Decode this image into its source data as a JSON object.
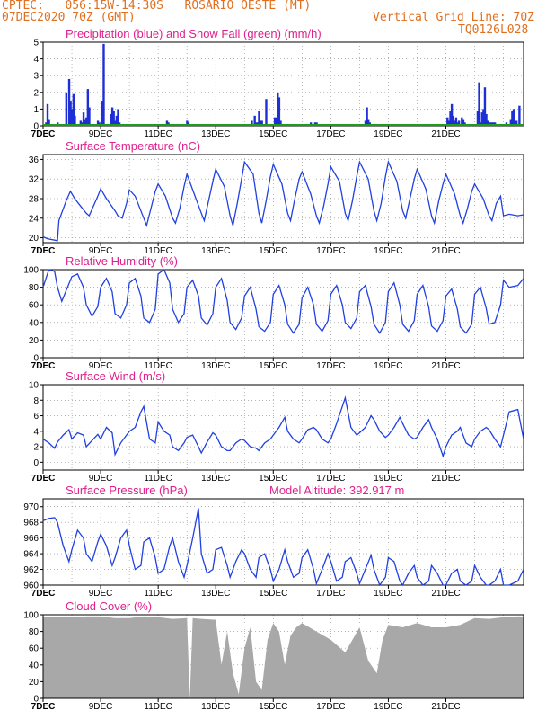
{
  "header": {
    "line1": "CPTEC:   056:15W-14:30S   ROSARIO OESTE (MT)",
    "line2_left": "07DEC2020 70Z (GMT)",
    "line2_right": "Vertical Grid Line: 70Z",
    "code": "TQ0126L028"
  },
  "chart_data": [
    {
      "type": "bar",
      "title": "Precipitation (blue) and Snow Fall (green) (mm/h)",
      "x_ticks": [
        "7DEC",
        "9DEC",
        "11DEC",
        "13DEC",
        "15DEC",
        "17DEC",
        "19DEC",
        "21DEC"
      ],
      "ylim": [
        0,
        5
      ],
      "y_ticks": [
        0,
        1,
        2,
        3,
        4,
        5
      ],
      "colors": {
        "precip": "#1f2fd6",
        "snow": "#18a018"
      },
      "series": [
        {
          "name": "Precipitation",
          "x": [
            0.1,
            0.15,
            0.2,
            0.5,
            0.8,
            0.9,
            0.95,
            1.0,
            1.05,
            1.1,
            1.3,
            1.35,
            1.4,
            1.45,
            1.5,
            1.55,
            1.6,
            1.9,
            1.95,
            2.0,
            2.05,
            2.1,
            2.35,
            2.4,
            2.45,
            2.5,
            2.55,
            2.6,
            2.65,
            4.3,
            4.35,
            5.0,
            5.05,
            5.1,
            7.25,
            7.3,
            7.35,
            7.4,
            7.45,
            7.5,
            7.55,
            7.6,
            7.65,
            7.7,
            7.75,
            7.8,
            7.85,
            8.05,
            8.1,
            8.15,
            8.2,
            8.25,
            8.3,
            8.35,
            9.3,
            9.35,
            9.4,
            9.45,
            9.5,
            11.15,
            11.2,
            11.25,
            11.3,
            11.35,
            14.05,
            14.1,
            14.15,
            14.2,
            14.25,
            14.3,
            14.35,
            14.4,
            14.45,
            14.5,
            14.55,
            14.6,
            14.65,
            14.7,
            15.1,
            15.15,
            15.2,
            15.25,
            15.3,
            15.35,
            15.4,
            15.45,
            15.5,
            15.55,
            15.6,
            15.65,
            15.7,
            16.1,
            16.15,
            16.2,
            16.25,
            16.3,
            16.35,
            16.4,
            16.45,
            16.5,
            16.55,
            16.6
          ],
          "values": [
            0.2,
            1.3,
            0.4,
            0.2,
            2.0,
            2.8,
            1.5,
            1.0,
            1.9,
            0.6,
            0.3,
            0.2,
            0.8,
            0.4,
            0.5,
            2.2,
            1.1,
            0.3,
            0.2,
            0.1,
            1.5,
            4.9,
            0.7,
            1.1,
            0.9,
            0.3,
            0.6,
            1.0,
            0.2,
            0.3,
            0.2,
            0.3,
            0.2,
            0.1,
            0.3,
            0.1,
            0.6,
            0.2,
            0.2,
            0.9,
            0.3,
            0.3,
            0.1,
            0.1,
            1.6,
            0.1,
            0.1,
            0.5,
            0.5,
            2.0,
            1.7,
            0.3,
            0.1,
            0.1,
            0.2,
            0.1,
            0.1,
            0.2,
            0.2,
            0.1,
            0.3,
            1.1,
            0.4,
            0.2,
            0.5,
            0.3,
            0.9,
            1.3,
            0.6,
            0.3,
            0.5,
            0.2,
            0.3,
            0.1,
            0.5,
            0.4,
            0.2,
            0.1,
            0.9,
            2.6,
            0.2,
            0.8,
            1.0,
            2.3,
            0.7,
            0.3,
            0.2,
            0.2,
            0.2,
            0.2,
            0.2,
            0.2,
            0.1,
            0.1,
            0.4,
            0.9,
            1.0,
            0.1,
            0.3,
            0.1,
            1.2,
            0.1
          ]
        },
        {
          "name": "Snow Fall",
          "x": [
            0,
            16.7
          ],
          "values": [
            0,
            0
          ]
        }
      ]
    },
    {
      "type": "line",
      "title": "Surface Temperature (nC)",
      "x_ticks": [
        "7DEC",
        "9DEC",
        "11DEC",
        "13DEC",
        "15DEC",
        "17DEC",
        "19DEC",
        "21DEC"
      ],
      "ylim": [
        19,
        37
      ],
      "y_ticks": [
        20,
        24,
        28,
        32,
        36
      ],
      "color": "#2040e0",
      "x": [
        0.0,
        0.15,
        0.5,
        0.55,
        0.8,
        0.95,
        1.1,
        1.3,
        1.5,
        1.6,
        1.75,
        1.9,
        2.0,
        2.2,
        2.5,
        2.6,
        2.75,
        2.9,
        3.0,
        3.2,
        3.5,
        3.6,
        3.75,
        3.9,
        4.0,
        4.25,
        4.5,
        4.6,
        4.75,
        4.9,
        5.0,
        5.25,
        5.5,
        5.6,
        5.75,
        5.9,
        6.0,
        6.3,
        6.5,
        6.6,
        6.75,
        6.9,
        7.0,
        7.3,
        7.5,
        7.6,
        7.75,
        7.9,
        8.0,
        8.3,
        8.5,
        8.6,
        8.75,
        8.9,
        9.0,
        9.3,
        9.5,
        9.6,
        9.75,
        9.9,
        10.0,
        10.3,
        10.5,
        10.6,
        10.75,
        10.9,
        11.0,
        11.3,
        11.5,
        11.6,
        11.75,
        11.9,
        12.0,
        12.3,
        12.5,
        12.6,
        12.75,
        12.9,
        13.0,
        13.3,
        13.5,
        13.6,
        13.75,
        13.9,
        14.0,
        14.3,
        14.5,
        14.6,
        14.75,
        14.9,
        15.0,
        15.3,
        15.5,
        15.6,
        15.75,
        15.9,
        16.0,
        16.2,
        16.5,
        16.7
      ],
      "y": [
        20.2,
        19.8,
        19.4,
        23.5,
        27.5,
        29.5,
        28.0,
        26.5,
        25.0,
        24.5,
        26.5,
        28.5,
        30.0,
        28.0,
        25.5,
        24.5,
        24.0,
        27.0,
        29.8,
        28.5,
        24.0,
        22.5,
        26.0,
        29.5,
        31.0,
        28.5,
        24.0,
        23.0,
        26.0,
        30.5,
        33.0,
        29.0,
        25.0,
        23.5,
        27.5,
        31.5,
        34.0,
        30.5,
        24.5,
        22.5,
        27.0,
        32.0,
        35.5,
        33.0,
        25.0,
        23.0,
        27.5,
        32.5,
        35.0,
        31.0,
        25.0,
        23.5,
        28.0,
        32.0,
        33.5,
        29.0,
        24.5,
        23.0,
        26.5,
        31.0,
        34.5,
        31.5,
        25.0,
        23.5,
        27.5,
        32.5,
        35.5,
        32.0,
        25.5,
        23.5,
        27.0,
        32.5,
        35.5,
        31.5,
        25.5,
        24.0,
        28.0,
        32.0,
        34.0,
        30.0,
        24.5,
        23.0,
        27.5,
        31.0,
        33.0,
        29.0,
        24.5,
        23.0,
        26.0,
        29.5,
        31.0,
        28.0,
        24.5,
        23.5,
        27.0,
        28.5,
        24.5,
        24.8,
        24.5,
        24.7
      ]
    },
    {
      "type": "line",
      "title": "Relative Humidity (%)",
      "x_ticks": [
        "7DEC",
        "9DEC",
        "11DEC",
        "13DEC",
        "15DEC",
        "17DEC",
        "19DEC",
        "21DEC"
      ],
      "ylim": [
        0,
        100
      ],
      "y_ticks": [
        0,
        20,
        40,
        60,
        80,
        100
      ],
      "color": "#2040e0",
      "x": [
        0.0,
        0.2,
        0.4,
        0.5,
        0.65,
        0.8,
        1.0,
        1.2,
        1.4,
        1.5,
        1.7,
        1.9,
        2.0,
        2.2,
        2.4,
        2.5,
        2.7,
        2.9,
        3.0,
        3.2,
        3.4,
        3.5,
        3.7,
        3.9,
        4.0,
        4.2,
        4.4,
        4.5,
        4.7,
        4.9,
        5.0,
        5.2,
        5.4,
        5.5,
        5.7,
        5.9,
        6.0,
        6.2,
        6.4,
        6.5,
        6.7,
        6.9,
        7.0,
        7.2,
        7.4,
        7.5,
        7.7,
        7.9,
        8.0,
        8.2,
        8.4,
        8.5,
        8.7,
        8.9,
        9.0,
        9.2,
        9.4,
        9.5,
        9.7,
        9.9,
        10.0,
        10.2,
        10.4,
        10.5,
        10.7,
        10.9,
        11.0,
        11.2,
        11.4,
        11.5,
        11.7,
        11.9,
        12.0,
        12.2,
        12.4,
        12.5,
        12.7,
        12.9,
        13.0,
        13.2,
        13.4,
        13.5,
        13.7,
        13.9,
        14.0,
        14.2,
        14.4,
        14.5,
        14.7,
        14.9,
        15.0,
        15.2,
        15.4,
        15.5,
        15.7,
        15.9,
        16.0,
        16.2,
        16.5,
        16.7
      ],
      "y": [
        80,
        100,
        98,
        80,
        64,
        76,
        92,
        95,
        80,
        60,
        47,
        58,
        80,
        90,
        75,
        50,
        45,
        60,
        85,
        90,
        70,
        45,
        40,
        55,
        95,
        100,
        85,
        55,
        40,
        50,
        80,
        88,
        70,
        45,
        37,
        50,
        80,
        90,
        65,
        40,
        32,
        45,
        70,
        80,
        55,
        35,
        30,
        40,
        72,
        82,
        60,
        38,
        28,
        38,
        68,
        80,
        60,
        38,
        30,
        42,
        72,
        82,
        60,
        40,
        33,
        45,
        75,
        82,
        58,
        38,
        28,
        40,
        75,
        85,
        60,
        38,
        30,
        42,
        72,
        82,
        58,
        36,
        30,
        42,
        70,
        78,
        55,
        35,
        28,
        38,
        72,
        80,
        56,
        38,
        40,
        60,
        88,
        80,
        82,
        90
      ]
    },
    {
      "type": "line",
      "title": "Surface Wind (m/s)",
      "x_ticks": [
        "7DEC",
        "9DEC",
        "11DEC",
        "13DEC",
        "15DEC",
        "17DEC",
        "19DEC",
        "21DEC"
      ],
      "ylim": [
        -1,
        10
      ],
      "y_ticks": [
        0,
        2,
        4,
        6,
        8,
        10
      ],
      "color": "#2040e0",
      "x": [
        0.0,
        0.2,
        0.4,
        0.5,
        0.7,
        0.9,
        1.0,
        1.2,
        1.4,
        1.5,
        1.7,
        1.9,
        2.0,
        2.2,
        2.4,
        2.5,
        2.7,
        2.9,
        3.0,
        3.2,
        3.4,
        3.5,
        3.7,
        3.9,
        4.0,
        4.2,
        4.4,
        4.5,
        4.7,
        4.9,
        5.0,
        5.2,
        5.4,
        5.5,
        5.7,
        5.9,
        6.0,
        6.2,
        6.4,
        6.5,
        6.7,
        6.9,
        7.0,
        7.2,
        7.4,
        7.5,
        7.7,
        7.9,
        8.0,
        8.2,
        8.4,
        8.5,
        8.7,
        8.9,
        9.0,
        9.2,
        9.4,
        9.5,
        9.7,
        9.9,
        10.0,
        10.2,
        10.4,
        10.5,
        10.7,
        10.9,
        11.0,
        11.2,
        11.4,
        11.5,
        11.7,
        11.9,
        12.0,
        12.2,
        12.4,
        12.5,
        12.7,
        12.9,
        13.0,
        13.2,
        13.4,
        13.5,
        13.7,
        13.9,
        14.0,
        14.2,
        14.4,
        14.5,
        14.7,
        14.9,
        15.0,
        15.2,
        15.4,
        15.5,
        15.7,
        15.9,
        16.0,
        16.2,
        16.5,
        16.7
      ],
      "y": [
        3.0,
        2.5,
        1.8,
        2.6,
        3.5,
        4.2,
        3.0,
        3.8,
        3.5,
        2.0,
        2.8,
        3.6,
        3.0,
        4.5,
        3.8,
        1.0,
        2.5,
        3.5,
        4.0,
        4.5,
        6.5,
        7.2,
        3.0,
        2.5,
        5.2,
        4.0,
        3.5,
        2.0,
        1.5,
        2.5,
        3.2,
        3.5,
        2.0,
        1.2,
        2.6,
        3.8,
        3.5,
        2.0,
        1.5,
        1.5,
        2.5,
        3.0,
        2.8,
        2.0,
        1.8,
        1.5,
        2.5,
        3.0,
        3.5,
        4.5,
        5.8,
        4.0,
        3.0,
        2.5,
        3.0,
        4.2,
        4.5,
        4.2,
        3.0,
        2.5,
        3.0,
        5.0,
        7.2,
        8.3,
        4.5,
        3.5,
        3.8,
        4.5,
        6.0,
        5.5,
        4.0,
        3.2,
        3.5,
        4.5,
        5.8,
        5.0,
        3.5,
        3.0,
        3.2,
        4.5,
        5.5,
        4.5,
        3.0,
        0.8,
        2.0,
        3.5,
        4.0,
        4.5,
        2.5,
        2.0,
        3.0,
        4.0,
        4.5,
        4.2,
        3.0,
        2.0,
        3.5,
        6.5,
        6.8,
        3.0
      ]
    },
    {
      "type": "line",
      "title": "Surface Pressure (hPa)",
      "annotation": "Model Altitude: 392.917  m",
      "x_ticks": [
        "7DEC",
        "9DEC",
        "11DEC",
        "13DEC",
        "15DEC",
        "17DEC",
        "19DEC",
        "21DEC"
      ],
      "ylim": [
        960,
        971
      ],
      "y_ticks": [
        960,
        962,
        964,
        966,
        968,
        970
      ],
      "color": "#2040e0",
      "x": [
        0.0,
        0.2,
        0.4,
        0.5,
        0.7,
        0.9,
        1.0,
        1.2,
        1.4,
        1.5,
        1.7,
        1.9,
        2.0,
        2.2,
        2.4,
        2.5,
        2.7,
        2.9,
        3.0,
        3.2,
        3.4,
        3.5,
        3.7,
        3.9,
        4.0,
        4.2,
        4.4,
        4.5,
        4.7,
        4.9,
        5.0,
        5.2,
        5.4,
        5.5,
        5.7,
        5.9,
        6.0,
        6.2,
        6.4,
        6.5,
        6.7,
        6.9,
        7.0,
        7.2,
        7.4,
        7.5,
        7.7,
        7.9,
        8.0,
        8.2,
        8.4,
        8.5,
        8.7,
        8.9,
        9.0,
        9.2,
        9.4,
        9.5,
        9.7,
        9.9,
        10.0,
        10.2,
        10.4,
        10.5,
        10.7,
        10.9,
        11.0,
        11.2,
        11.4,
        11.5,
        11.7,
        11.9,
        12.0,
        12.2,
        12.4,
        12.5,
        12.7,
        12.9,
        13.0,
        13.2,
        13.4,
        13.5,
        13.7,
        13.9,
        14.0,
        14.2,
        14.4,
        14.5,
        14.7,
        14.9,
        15.0,
        15.2,
        15.4,
        15.5,
        15.7,
        15.9,
        16.0,
        16.2,
        16.5,
        16.7
      ],
      "y": [
        968.2,
        968.5,
        968.6,
        968.0,
        965.0,
        963.0,
        964.5,
        967.0,
        966.0,
        964.0,
        963.0,
        965.5,
        966.5,
        965.0,
        962.5,
        963.5,
        966.0,
        967.0,
        965.0,
        962.0,
        962.5,
        965.5,
        966.0,
        963.5,
        961.5,
        962.0,
        965.0,
        966.0,
        963.0,
        961.0,
        962.5,
        966.0,
        969.8,
        964.0,
        961.5,
        962.0,
        964.5,
        964.8,
        962.5,
        961.0,
        963.0,
        964.5,
        964.0,
        962.0,
        961.0,
        963.5,
        964.0,
        962.0,
        960.5,
        962.0,
        964.5,
        963.0,
        961.0,
        961.5,
        963.5,
        964.5,
        962.0,
        960.2,
        962.0,
        964.0,
        963.0,
        960.5,
        961.0,
        963.0,
        963.5,
        961.5,
        960.2,
        962.0,
        963.8,
        962.0,
        960.0,
        961.0,
        963.5,
        963.0,
        960.5,
        960.0,
        961.5,
        962.5,
        961.0,
        959.5,
        960.5,
        962.5,
        961.5,
        959.5,
        959.0,
        961.5,
        962.0,
        960.5,
        959.0,
        960.5,
        962.5,
        961.0,
        959.5,
        959.0,
        960.5,
        962.0,
        960.0,
        959.0,
        960.5,
        962.0
      ]
    },
    {
      "type": "area",
      "title": "Cloud Cover (%)",
      "x_ticks": [
        "7DEC",
        "9DEC",
        "11DEC",
        "13DEC",
        "15DEC",
        "17DEC",
        "19DEC",
        "21DEC"
      ],
      "ylim": [
        0,
        100
      ],
      "y_ticks": [
        0,
        20,
        40,
        60,
        80,
        100
      ],
      "color": "#a8a8a8",
      "x": [
        0.0,
        0.5,
        1.0,
        1.5,
        2.0,
        2.5,
        3.0,
        3.5,
        4.0,
        4.5,
        5.0,
        5.1,
        5.2,
        5.5,
        6.0,
        6.2,
        6.4,
        6.6,
        6.8,
        7.0,
        7.2,
        7.4,
        7.6,
        7.8,
        8.0,
        8.2,
        8.4,
        8.6,
        8.8,
        9.0,
        9.5,
        10.0,
        10.5,
        11.0,
        11.3,
        11.6,
        11.8,
        12.0,
        12.5,
        13.0,
        13.5,
        14.0,
        14.5,
        15.0,
        15.5,
        16.0,
        16.5,
        16.7
      ],
      "y": [
        98,
        97,
        97,
        98,
        98,
        96,
        96,
        98,
        97,
        95,
        96,
        0,
        96,
        95,
        94,
        40,
        80,
        30,
        5,
        60,
        85,
        20,
        10,
        70,
        90,
        80,
        40,
        75,
        85,
        90,
        80,
        70,
        55,
        85,
        45,
        30,
        70,
        88,
        85,
        90,
        85,
        85,
        88,
        96,
        95,
        97,
        98,
        98
      ]
    }
  ]
}
